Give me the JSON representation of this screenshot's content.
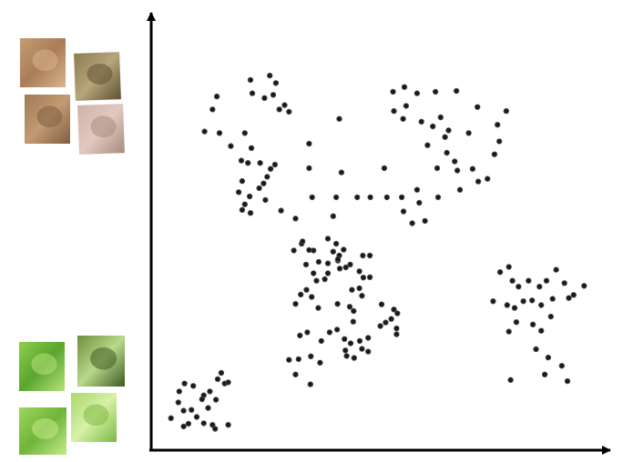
{
  "colors": {
    "axis": "#000000",
    "point": "#1a1a1a",
    "point_outline": "#555555",
    "background": "#ffffff"
  },
  "thumbnails": {
    "top_group": [
      {
        "name": "texture-patch-tan",
        "colors": [
          "#c59c74",
          "#a97d58",
          "#d8b48e"
        ]
      },
      {
        "name": "texture-patch-bark",
        "colors": [
          "#8c7a52",
          "#b7a67a",
          "#5e5033"
        ]
      },
      {
        "name": "texture-patch-brown",
        "colors": [
          "#9c7a56",
          "#c49a72",
          "#7c5e44"
        ]
      },
      {
        "name": "texture-patch-pink",
        "colors": [
          "#cdb3a8",
          "#e2c8c0",
          "#a88c7c"
        ]
      }
    ],
    "bottom_group": [
      {
        "name": "leaf-patch-1",
        "colors": [
          "#8ccf4e",
          "#5aa52e",
          "#b6e27a"
        ]
      },
      {
        "name": "leaf-patch-2",
        "colors": [
          "#6f8f3e",
          "#b9d98a",
          "#3e5a22"
        ]
      },
      {
        "name": "leaf-patch-3",
        "colors": [
          "#9ed65a",
          "#6eb53a",
          "#c6ea8a"
        ]
      },
      {
        "name": "leaf-patch-4",
        "colors": [
          "#a8d86a",
          "#d8f0a8",
          "#7cba42"
        ]
      }
    ]
  },
  "chart_data": {
    "type": "scatter",
    "title": "",
    "xlabel": "",
    "ylabel": "",
    "grid": false,
    "xlim": [
      0,
      100
    ],
    "ylim": [
      0,
      100
    ],
    "series": [
      {
        "points": [
          [
            12.1,
            85.9
          ],
          [
            11.1,
            82.6
          ],
          [
            9.3,
            77.0
          ],
          [
            20.2,
            86.7
          ],
          [
            19.8,
            90.1
          ],
          [
            24.2,
            91.2
          ],
          [
            23.0,
            85.5
          ],
          [
            26.4,
            82.6
          ],
          [
            25.0,
            86.3
          ],
          [
            28.6,
            82.0
          ],
          [
            25.6,
            89.3
          ],
          [
            27.6,
            83.7
          ],
          [
            12.7,
            76.6
          ],
          [
            15.3,
            73.3
          ],
          [
            18.5,
            76.6
          ],
          [
            20.0,
            72.8
          ],
          [
            17.7,
            69.6
          ],
          [
            22.0,
            69.0
          ],
          [
            24.4,
            67.5
          ],
          [
            23.6,
            65.5
          ],
          [
            19.2,
            69.0
          ],
          [
            22.8,
            63.8
          ],
          [
            21.8,
            62.6
          ],
          [
            25.4,
            68.6
          ],
          [
            17.9,
            64.4
          ],
          [
            19.6,
            60.5
          ],
          [
            18.5,
            58.5
          ],
          [
            17.1,
            61.6
          ],
          [
            23.2,
            59.6
          ],
          [
            17.9,
            57.1
          ],
          [
            19.8,
            56.3
          ],
          [
            26.8,
            56.9
          ],
          [
            52.4,
            87.1
          ],
          [
            55.0,
            88.3
          ],
          [
            55.4,
            83.5
          ],
          [
            57.9,
            86.7
          ],
          [
            62.1,
            87.1
          ],
          [
            66.9,
            87.3
          ],
          [
            54.7,
            80.2
          ],
          [
            52.6,
            82.2
          ],
          [
            58.9,
            79.5
          ],
          [
            61.5,
            78.3
          ],
          [
            63.3,
            80.6
          ],
          [
            71.7,
            83.2
          ],
          [
            65.1,
            77.3
          ],
          [
            60.3,
            73.5
          ],
          [
            64.3,
            75.6
          ],
          [
            69.7,
            76.6
          ],
          [
            78.3,
            82.2
          ],
          [
            76.3,
            78.7
          ],
          [
            76.7,
            74.5
          ],
          [
            75.6,
            71.2
          ],
          [
            64.7,
            71.6
          ],
          [
            66.5,
            69.4
          ],
          [
            62.5,
            67.7
          ],
          [
            67.1,
            67.1
          ],
          [
            70.6,
            67.5
          ],
          [
            71.9,
            64.3
          ],
          [
            74.0,
            65.0
          ],
          [
            67.7,
            62.2
          ],
          [
            62.7,
            60.3
          ],
          [
            57.9,
            62.2
          ],
          [
            54.4,
            60.3
          ],
          [
            58.4,
            58.9
          ],
          [
            54.8,
            56.7
          ],
          [
            51.0,
            60.3
          ],
          [
            59.7,
            54.3
          ],
          [
            56.8,
            53.7
          ],
          [
            50.4,
            67.7
          ],
          [
            47.2,
            60.3
          ],
          [
            44.2,
            60.3
          ],
          [
            40.6,
            66.6
          ],
          [
            33.2,
            73.9
          ],
          [
            33.2,
            67.7
          ],
          [
            40.1,
            80.2
          ],
          [
            38.7,
            55.5
          ],
          [
            39.4,
            60.3
          ],
          [
            33.9,
            60.3
          ],
          [
            30.1,
            54.9
          ],
          [
            31.5,
            48.5
          ],
          [
            32.5,
            43.2
          ],
          [
            29.7,
            46.8
          ],
          [
            31.7,
            49.1
          ],
          [
            34.2,
            46.8
          ],
          [
            33.2,
            46.9
          ],
          [
            35.4,
            43.9
          ],
          [
            37.5,
            49.8
          ],
          [
            39.4,
            48.5
          ],
          [
            38.7,
            46.5
          ],
          [
            41.1,
            47.0
          ],
          [
            40.1,
            45.5
          ],
          [
            40.2,
            42.2
          ],
          [
            39.8,
            44.2
          ],
          [
            39.8,
            44.6
          ],
          [
            42.6,
            43.2
          ],
          [
            41.6,
            42.5
          ],
          [
            45.5,
            45.5
          ],
          [
            45.6,
            39.9
          ],
          [
            47.1,
            45.5
          ],
          [
            47.1,
            40.0
          ],
          [
            44.7,
            41.5
          ],
          [
            37.5,
            41.0
          ],
          [
            43.0,
            36.8
          ],
          [
            34.9,
            39.1
          ],
          [
            37.5,
            43.5
          ],
          [
            36.8,
            39.5
          ],
          [
            34.2,
            41.0
          ],
          [
            31.3,
            35.6
          ],
          [
            33.8,
            35.0
          ],
          [
            32.6,
            36.8
          ],
          [
            30.1,
            33.2
          ],
          [
            35.3,
            32.2
          ],
          [
            39.7,
            33.2
          ],
          [
            43.4,
            31.4
          ],
          [
            42.5,
            32.5
          ],
          [
            44.7,
            37.2
          ],
          [
            45.3,
            35.3
          ],
          [
            49.8,
            33.1
          ],
          [
            52.6,
            31.8
          ],
          [
            53.4,
            30.8
          ],
          [
            52.0,
            29.4
          ],
          [
            43.3,
            28.7
          ],
          [
            49.5,
            27.6
          ],
          [
            53.2,
            25.5
          ],
          [
            50.7,
            28.5
          ],
          [
            53.2,
            27.0
          ],
          [
            31.1,
            25.2
          ],
          [
            32.8,
            26.0
          ],
          [
            36.0,
            23.8
          ],
          [
            39.6,
            26.7
          ],
          [
            37.9,
            26.0
          ],
          [
            41.3,
            24.3
          ],
          [
            42.7,
            23.2
          ],
          [
            44.8,
            23.8
          ],
          [
            46.7,
            24.6
          ],
          [
            41.5,
            21.4
          ],
          [
            33.6,
            19.9
          ],
          [
            35.7,
            18.3
          ],
          [
            45.3,
            21.8
          ],
          [
            46.7,
            21.1
          ],
          [
            41.8,
            20.0
          ],
          [
            43.5,
            19.5
          ],
          [
            30.8,
            19.2
          ],
          [
            30.1,
            15.3
          ],
          [
            33.5,
            12.8
          ],
          [
            28.6,
            19.0
          ],
          [
            76.9,
            41.3
          ],
          [
            78.9,
            42.6
          ],
          [
            79.7,
            39.1
          ],
          [
            81.1,
            37.6
          ],
          [
            83.4,
            39.1
          ],
          [
            85.9,
            37.6
          ],
          [
            87.5,
            39.1
          ],
          [
            89.7,
            41.9
          ],
          [
            91.6,
            38.5
          ],
          [
            93.7,
            35.5
          ],
          [
            96.1,
            37.8
          ],
          [
            92.6,
            34.7
          ],
          [
            88.9,
            34.5
          ],
          [
            86.3,
            32.9
          ],
          [
            84.2,
            34.1
          ],
          [
            82.2,
            33.9
          ],
          [
            80.2,
            32.2
          ],
          [
            78.5,
            32.9
          ],
          [
            75.3,
            33.9
          ],
          [
            80.6,
            28.6
          ],
          [
            78.9,
            26.2
          ],
          [
            84.4,
            28.0
          ],
          [
            86.3,
            26.4
          ],
          [
            88.5,
            30.0
          ],
          [
            85.1,
            21.7
          ],
          [
            87.9,
            19.6
          ],
          [
            91.0,
            17.5
          ],
          [
            92.3,
            13.6
          ],
          [
            87.1,
            15.3
          ],
          [
            79.3,
            13.9
          ],
          [
            3.5,
            11.0
          ],
          [
            4.7,
            13.0
          ],
          [
            6.7,
            12.4
          ],
          [
            9.1,
            10.0
          ],
          [
            10.5,
            11.0
          ],
          [
            12.3,
            14.1
          ],
          [
            13.1,
            15.7
          ],
          [
            13.9,
            13.0
          ],
          [
            14.7,
            13.3
          ],
          [
            11.9,
            8.9
          ],
          [
            10.1,
            6.8
          ],
          [
            8.7,
            9.0
          ],
          [
            6.3,
            6.3
          ],
          [
            7.5,
            4.5
          ],
          [
            4.5,
            6.1
          ],
          [
            3.3,
            8.2
          ],
          [
            1.6,
            4.2
          ],
          [
            5.6,
            2.8
          ],
          [
            9.1,
            2.9
          ],
          [
            11.1,
            2.5
          ],
          [
            11.7,
            1.5
          ],
          [
            14.7,
            2.5
          ],
          [
            4.5,
            2.1
          ]
        ]
      }
    ]
  }
}
